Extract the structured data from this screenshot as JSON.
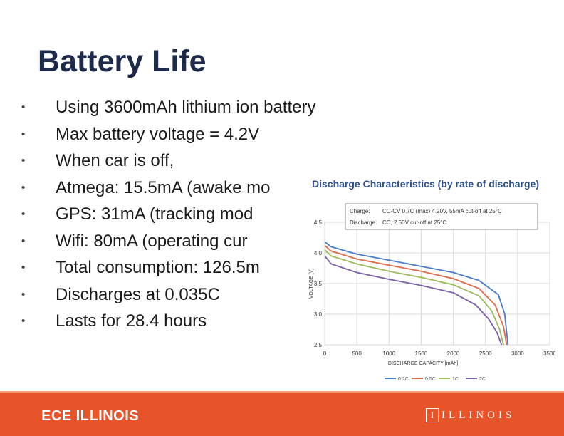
{
  "slide": {
    "title": "Battery Life",
    "bullet_glyph": "•",
    "bullets": [
      "Using 3600mAh lithium ion battery",
      "Max battery voltage = 4.2V",
      "When car is off,",
      "Atmega: 15.5mA (awake mo",
      "GPS: 31mA   (tracking mod",
      " Wifi: 80mA   (operating cur",
      "Total consumption: 126.5m",
      "Discharges at 0.035C",
      "Lasts for 28.4 hours"
    ]
  },
  "chart_data": {
    "type": "line",
    "title": "Discharge Characteristics (by rate of discharge)",
    "annotation": {
      "charge_label": "Charge:",
      "charge_text": "CC-CV 0.7C (max) 4.20V, 55mA cut-off at 25°C",
      "discharge_label": "Discharge:",
      "discharge_text": "CC, 2.50V cut-off at 25°C"
    },
    "xlabel": "DISCHARGE CAPACITY [mAh]",
    "ylabel": "VOLTAGE [V]",
    "xlim": [
      0,
      3500
    ],
    "ylim": [
      2.5,
      4.5
    ],
    "x_ticks": [
      "0",
      "500",
      "1000",
      "1500",
      "2000",
      "2500",
      "3000",
      "3500"
    ],
    "y_ticks": [
      "2.5",
      "3.0",
      "3.5",
      "4.0",
      "4.5"
    ],
    "legend_position": "bottom",
    "series": [
      {
        "name": "0.2C",
        "color": "#4a7cc9",
        "points": [
          [
            0,
            4.18
          ],
          [
            100,
            4.1
          ],
          [
            500,
            3.98
          ],
          [
            1000,
            3.88
          ],
          [
            1500,
            3.78
          ],
          [
            2000,
            3.68
          ],
          [
            2400,
            3.55
          ],
          [
            2700,
            3.32
          ],
          [
            2800,
            3.0
          ],
          [
            2850,
            2.5
          ]
        ]
      },
      {
        "name": "0.5C",
        "color": "#e06b4a",
        "points": [
          [
            0,
            4.12
          ],
          [
            100,
            4.03
          ],
          [
            500,
            3.9
          ],
          [
            1000,
            3.8
          ],
          [
            1500,
            3.7
          ],
          [
            2000,
            3.58
          ],
          [
            2400,
            3.42
          ],
          [
            2650,
            3.15
          ],
          [
            2780,
            2.8
          ],
          [
            2830,
            2.5
          ]
        ]
      },
      {
        "name": "1C",
        "color": "#9bbb59",
        "points": [
          [
            0,
            4.05
          ],
          [
            100,
            3.95
          ],
          [
            500,
            3.82
          ],
          [
            1000,
            3.7
          ],
          [
            1500,
            3.6
          ],
          [
            2000,
            3.48
          ],
          [
            2400,
            3.3
          ],
          [
            2600,
            3.05
          ],
          [
            2720,
            2.75
          ],
          [
            2780,
            2.5
          ]
        ]
      },
      {
        "name": "2C",
        "color": "#7b5fa8",
        "points": [
          [
            0,
            3.95
          ],
          [
            100,
            3.82
          ],
          [
            500,
            3.68
          ],
          [
            1000,
            3.57
          ],
          [
            1500,
            3.47
          ],
          [
            2000,
            3.35
          ],
          [
            2350,
            3.15
          ],
          [
            2550,
            2.92
          ],
          [
            2680,
            2.7
          ],
          [
            2750,
            2.5
          ]
        ]
      }
    ],
    "colors": {
      "grid": "#d9d9d9",
      "annotation_border": "#8c8c8c",
      "title": "#2d4f8a"
    }
  },
  "footer": {
    "left_logo_text": "ECE ILLINOIS",
    "right_logo_mark": "I",
    "right_logo_text": "ILLINOIS",
    "background": "#e8542a"
  }
}
